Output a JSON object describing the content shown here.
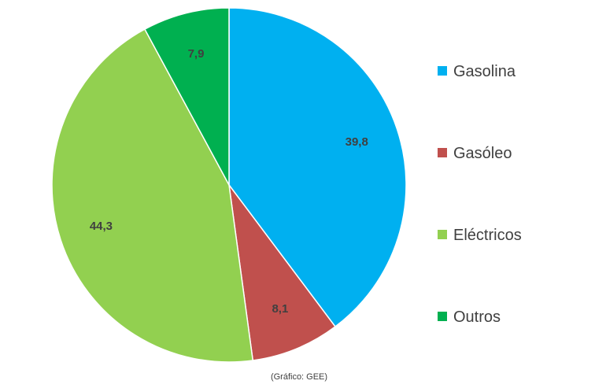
{
  "chart_data": {
    "type": "pie",
    "categories": [
      "Gasolina",
      "Gasóleo",
      "Eléctricos",
      "Outros"
    ],
    "values": [
      39.8,
      8.1,
      44.3,
      7.9
    ],
    "value_labels": [
      "39,8",
      "8,1",
      "44,3",
      "7,9"
    ],
    "colors": [
      "#00B0F0",
      "#C0504D",
      "#92D050",
      "#00B050"
    ],
    "start_angle": "12 o'clock",
    "direction": "clockwise",
    "legend_position": "right",
    "source_note": "(Gráfico: GEE)"
  }
}
